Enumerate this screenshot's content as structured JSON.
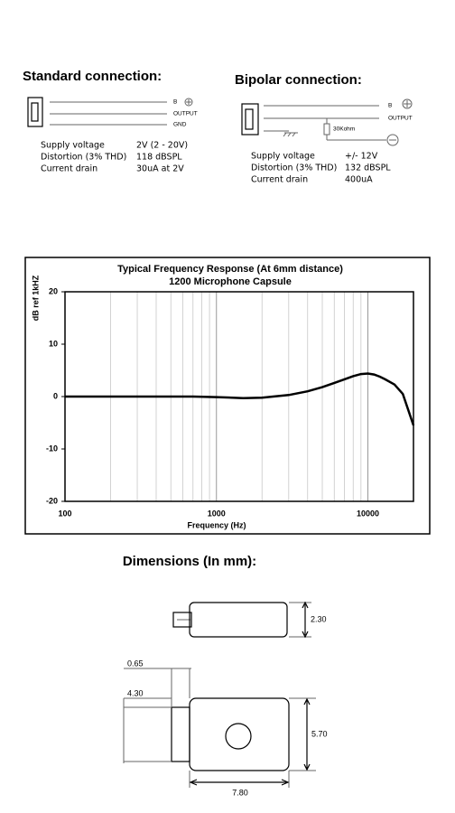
{
  "standard": {
    "title": "Standard connection:",
    "pins": [
      "B",
      "OUTPUT",
      "GND"
    ],
    "specs": [
      [
        "Supply voltage",
        "2V (2 - 20V)"
      ],
      [
        "Distortion (3% THD)",
        "118 dBSPL"
      ],
      [
        "Current drain",
        "30uA at 2V"
      ]
    ]
  },
  "bipolar": {
    "title": "Bipolar connection:",
    "pins": [
      "B",
      "OUTPUT"
    ],
    "resistor": "30Kohm",
    "specs": [
      [
        "Supply voltage",
        "+/- 12V"
      ],
      [
        "Distortion (3% THD)",
        "132 dBSPL"
      ],
      [
        "Current drain",
        "400uA"
      ]
    ]
  },
  "chart_data": {
    "type": "line",
    "title": "Typical Frequency Response (At 6mm distance)",
    "subtitle": "1200 Microphone Capsule",
    "x_label": "Frequency (Hz)",
    "y_label": "dB ref 1kHZ",
    "x": [
      100,
      200,
      400,
      700,
      1000,
      1500,
      2000,
      3000,
      4000,
      5000,
      6000,
      7000,
      8000,
      9000,
      10000,
      11000,
      12000,
      13000,
      15000,
      17000,
      20000
    ],
    "series": [
      {
        "color": "#000000",
        "values": [
          0,
          0,
          0,
          0,
          -0.1,
          -0.3,
          -0.2,
          0.3,
          1,
          1.8,
          2.6,
          3.3,
          3.9,
          4.3,
          4.4,
          4.2,
          3.8,
          3.3,
          2.3,
          0.5,
          -5.5
        ]
      }
    ],
    "xlim": [
      100,
      20000
    ],
    "ylim": [
      -20,
      20
    ],
    "xticks": [
      100,
      1000,
      10000
    ],
    "yticks": [
      -20,
      -10,
      0,
      10,
      20
    ],
    "x_log": true,
    "grid": "x"
  },
  "dimensions": {
    "title": "Dimensions (In mm):",
    "labels": [
      "2.30",
      "0.65",
      "4.30",
      "5.70",
      "7.80"
    ]
  }
}
